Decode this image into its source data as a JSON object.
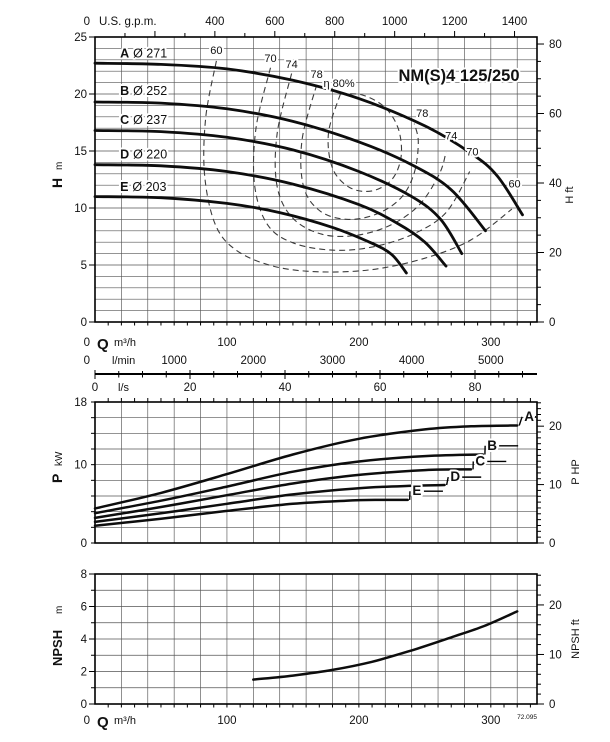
{
  "title": "NM(S)4 125/250",
  "drawing_code": "72.095",
  "colors": {
    "curve": "#0d0d0d",
    "grid": "#555555",
    "contour": "#3c3c3c",
    "text": "#111111"
  },
  "chart_data": [
    {
      "id": "hq",
      "type": "line",
      "title": "NM(S)4 125/250",
      "x_prefix": "Q",
      "x_unit_primary": "m³/h",
      "x_origin_label": "0",
      "xlim": [
        0,
        335
      ],
      "x_grid_step": 20,
      "x_minor_tick_step": 10,
      "x_ticks_m3h": [
        100,
        200,
        300
      ],
      "top_axis": {
        "unit": "U.S. g.p.m.",
        "origin_label": "0",
        "ticks": [
          400,
          600,
          800,
          1000,
          1200,
          1400
        ],
        "minor_step": 100,
        "gpm_per_m3h": 4.4029
      },
      "lmin_axis": {
        "unit": "l/min",
        "origin_label": "0",
        "ticks": [
          1000,
          2000,
          3000,
          4000,
          5000
        ],
        "m3h_per_unit": 0.06
      },
      "ls_axis": {
        "unit": "l/s",
        "ticks": [
          0,
          20,
          40,
          60,
          80
        ],
        "minor_step": 5,
        "max": 90,
        "m3h_per_unit": 3.6
      },
      "ylabel": "H",
      "y_unit": "m",
      "ylim": [
        0,
        25
      ],
      "y_grid_step": 1,
      "y_ticks": [
        0,
        5,
        10,
        15,
        20,
        25
      ],
      "y2label": "H ft",
      "y2_ticks": [
        0,
        20,
        40,
        60,
        80
      ],
      "y2_minor_step": 5,
      "ft_per_m": 3.2808,
      "series": [
        {
          "name": "A",
          "diameter": "Ø 271",
          "label_q": 19,
          "label_h": 23.2,
          "points": [
            [
              0,
              22.7
            ],
            [
              50,
              22.6
            ],
            [
              100,
              22.2
            ],
            [
              150,
              21.2
            ],
            [
              200,
              19.6
            ],
            [
              250,
              17.2
            ],
            [
              285,
              14.8
            ],
            [
              305,
              12.8
            ],
            [
              324,
              9.4
            ]
          ]
        },
        {
          "name": "B",
          "diameter": "Ø 252",
          "label_q": 19,
          "label_h": 19.9,
          "points": [
            [
              0,
              19.3
            ],
            [
              50,
              19.2
            ],
            [
              100,
              18.7
            ],
            [
              150,
              17.6
            ],
            [
              200,
              15.8
            ],
            [
              240,
              13.8
            ],
            [
              270,
              11.6
            ],
            [
              296,
              8.0
            ]
          ]
        },
        {
          "name": "C",
          "diameter": "Ø 237",
          "label_q": 19,
          "label_h": 17.35,
          "points": [
            [
              0,
              16.8
            ],
            [
              50,
              16.7
            ],
            [
              100,
              16.2
            ],
            [
              150,
              15.1
            ],
            [
              200,
              13.2
            ],
            [
              240,
              11.0
            ],
            [
              262,
              9.0
            ],
            [
              278,
              6.0
            ]
          ]
        },
        {
          "name": "D",
          "diameter": "Ø 220",
          "label_q": 19,
          "label_h": 14.35,
          "points": [
            [
              0,
              13.8
            ],
            [
              50,
              13.7
            ],
            [
              100,
              13.2
            ],
            [
              150,
              12.1
            ],
            [
              200,
              10.3
            ],
            [
              230,
              8.6
            ],
            [
              250,
              7.0
            ],
            [
              266,
              4.9
            ]
          ]
        },
        {
          "name": "E",
          "diameter": "Ø 203",
          "label_q": 19,
          "label_h": 11.5,
          "points": [
            [
              0,
              11.0
            ],
            [
              50,
              10.9
            ],
            [
              100,
              10.4
            ],
            [
              140,
              9.6
            ],
            [
              180,
              8.3
            ],
            [
              210,
              6.9
            ],
            [
              225,
              5.9
            ],
            [
              236,
              4.3
            ]
          ]
        }
      ],
      "efficiency_contours": [
        {
          "value": 60,
          "points": [
            [
              92,
              22.9
            ],
            [
              84,
              18
            ],
            [
              83,
              13
            ],
            [
              91,
              8.6
            ],
            [
              107,
              6.3
            ],
            [
              135,
              4.9
            ],
            [
              170,
              4.4
            ],
            [
              210,
              4.6
            ],
            [
              250,
              5.6
            ],
            [
              285,
              7.2
            ],
            [
              316,
              9.9
            ]
          ]
        },
        {
          "value": 70,
          "points": [
            [
              133,
              22.3
            ],
            [
              122,
              17
            ],
            [
              121,
              12
            ],
            [
              131,
              8.5
            ],
            [
              151,
              6.9
            ],
            [
              181,
              6.3
            ],
            [
              211,
              6.6
            ],
            [
              241,
              7.7
            ],
            [
              266,
              9.6
            ],
            [
              284,
              13.2
            ]
          ]
        },
        {
          "value": 74,
          "points": [
            [
              149,
              21.8
            ],
            [
              138,
              16.5
            ],
            [
              138,
              11.9
            ],
            [
              150,
              9.1
            ],
            [
              172,
              7.7
            ],
            [
              198,
              7.6
            ],
            [
              224,
              8.5
            ],
            [
              246,
              10.3
            ],
            [
              261,
              13.0
            ],
            [
              266,
              14.9
            ]
          ]
        },
        {
          "value": 78,
          "points": [
            [
              168,
              20.8
            ],
            [
              157,
              16.0
            ],
            [
              158,
              11.9
            ],
            [
              171,
              9.7
            ],
            [
              192,
              9.0
            ],
            [
              214,
              9.5
            ],
            [
              232,
              10.9
            ],
            [
              242,
              13.1
            ],
            [
              245,
              15.8
            ],
            [
              242,
              17.4
            ]
          ]
        },
        {
          "value": 80,
          "points": [
            [
              186,
              20.0
            ],
            [
              177,
              16.6
            ],
            [
              180,
              13.5
            ],
            [
              193,
              11.8
            ],
            [
              210,
              11.5
            ],
            [
              225,
              12.5
            ],
            [
              232,
              14.5
            ],
            [
              230,
              16.9
            ],
            [
              220,
              18.8
            ],
            [
              203,
              19.9
            ],
            [
              186,
              20.0
            ]
          ]
        }
      ],
      "efficiency_labels": [
        {
          "text": "60",
          "q": 92,
          "h": 23.5
        },
        {
          "text": "70",
          "q": 133,
          "h": 22.8
        },
        {
          "text": "74",
          "q": 149,
          "h": 22.3
        },
        {
          "text": "78",
          "q": 168,
          "h": 21.4
        },
        {
          "text": "η 80%",
          "q": 185,
          "h": 20.6
        },
        {
          "text": "78",
          "q": 248,
          "h": 18.0
        },
        {
          "text": "74",
          "q": 270,
          "h": 16.0
        },
        {
          "text": "70",
          "q": 286,
          "h": 14.6
        },
        {
          "text": "60",
          "q": 318,
          "h": 11.8
        }
      ]
    },
    {
      "id": "power",
      "type": "line",
      "ylabel": "P",
      "y_unit": "kW",
      "ylim": [
        0,
        18
      ],
      "y_grid_step": 2,
      "y_ticks": [
        0,
        10,
        18
      ],
      "y2label": "P HP",
      "y2_ticks": [
        0,
        10,
        20
      ],
      "y2_minor_step": 1,
      "hp_per_kw": 1.341,
      "series": [
        {
          "name": "A",
          "label_q": 329,
          "label_p": 15.6,
          "points": [
            [
              0,
              4.4
            ],
            [
              50,
              6.4
            ],
            [
              100,
              8.8
            ],
            [
              150,
              11.3
            ],
            [
              200,
              13.3
            ],
            [
              250,
              14.5
            ],
            [
              285,
              14.9
            ],
            [
              320,
              15.0
            ]
          ]
        },
        {
          "name": "B",
          "label_q": 301,
          "label_p": 11.9,
          "points": [
            [
              0,
              3.8
            ],
            [
              50,
              5.4
            ],
            [
              100,
              7.2
            ],
            [
              150,
              9.1
            ],
            [
              200,
              10.4
            ],
            [
              250,
              11.1
            ],
            [
              294,
              11.3
            ]
          ]
        },
        {
          "name": "C",
          "label_q": 292,
          "label_p": 9.9,
          "points": [
            [
              0,
              3.2
            ],
            [
              50,
              4.6
            ],
            [
              100,
              6.1
            ],
            [
              150,
              7.6
            ],
            [
              200,
              8.7
            ],
            [
              250,
              9.3
            ],
            [
              285,
              9.4
            ]
          ]
        },
        {
          "name": "D",
          "label_q": 273,
          "label_p": 7.9,
          "points": [
            [
              0,
              2.7
            ],
            [
              50,
              3.8
            ],
            [
              100,
              5.0
            ],
            [
              150,
              6.2
            ],
            [
              200,
              7.0
            ],
            [
              240,
              7.3
            ],
            [
              265,
              7.4
            ]
          ]
        },
        {
          "name": "E",
          "label_q": 244,
          "label_p": 6.1,
          "points": [
            [
              0,
              2.2
            ],
            [
              50,
              3.1
            ],
            [
              100,
              4.1
            ],
            [
              150,
              5.0
            ],
            [
              190,
              5.4
            ],
            [
              215,
              5.5
            ],
            [
              237,
              5.5
            ]
          ]
        }
      ]
    },
    {
      "id": "npsh",
      "type": "line",
      "x_prefix": "Q",
      "x_unit_primary": "m³/h",
      "x_origin_label": "0",
      "x_ticks_m3h": [
        100,
        200,
        300
      ],
      "ylabel": "NPSH",
      "y_unit": "m",
      "ylim": [
        0,
        8
      ],
      "y_grid_step": 1,
      "y_ticks": [
        0,
        2,
        4,
        6,
        8
      ],
      "y2label": "NPSH ft",
      "y2_ticks": [
        0,
        10,
        20
      ],
      "y2_minor_step": 2,
      "ft_per_m": 3.2808,
      "series": [
        {
          "name": "NPSH",
          "points": [
            [
              120,
              1.5
            ],
            [
              150,
              1.75
            ],
            [
              180,
              2.1
            ],
            [
              210,
              2.6
            ],
            [
              240,
              3.3
            ],
            [
              270,
              4.1
            ],
            [
              295,
              4.8
            ],
            [
              320,
              5.7
            ]
          ]
        }
      ]
    }
  ]
}
